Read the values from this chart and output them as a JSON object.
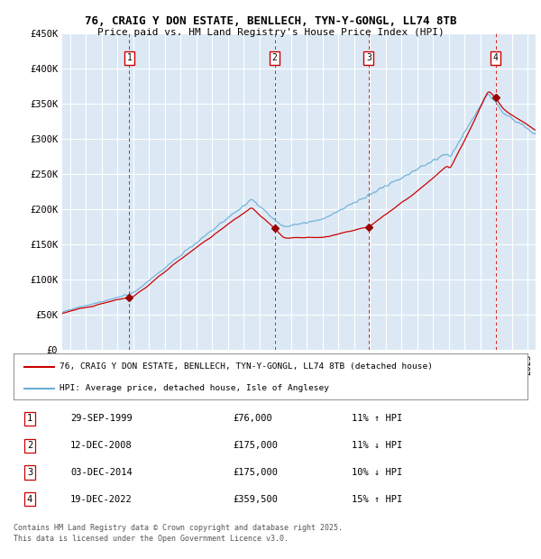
{
  "title": "76, CRAIG Y DON ESTATE, BENLLECH, TYN-Y-GONGL, LL74 8TB",
  "subtitle": "Price paid vs. HM Land Registry's House Price Index (HPI)",
  "ylim": [
    0,
    450000
  ],
  "xlim_start": 1995.5,
  "xlim_end": 2025.5,
  "bg_color": "#dce9f5",
  "grid_color": "#ffffff",
  "sale_points": [
    {
      "num": 1,
      "date_dec": 1999.75,
      "price": 76000
    },
    {
      "num": 2,
      "date_dec": 2008.96,
      "price": 175000
    },
    {
      "num": 3,
      "date_dec": 2014.92,
      "price": 175000
    },
    {
      "num": 4,
      "date_dec": 2022.96,
      "price": 359500
    }
  ],
  "legend_line1": "76, CRAIG Y DON ESTATE, BENLLECH, TYN-Y-GONGL, LL74 8TB (detached house)",
  "legend_line2": "HPI: Average price, detached house, Isle of Anglesey",
  "footer1": "Contains HM Land Registry data © Crown copyright and database right 2025.",
  "footer2": "This data is licensed under the Open Government Licence v3.0.",
  "table_rows": [
    {
      "num": 1,
      "date": "29-SEP-1999",
      "price": "£76,000",
      "pct": "11% ↑ HPI"
    },
    {
      "num": 2,
      "date": "12-DEC-2008",
      "price": "£175,000",
      "pct": "11% ↓ HPI"
    },
    {
      "num": 3,
      "date": "03-DEC-2014",
      "price": "£175,000",
      "pct": "10% ↓ HPI"
    },
    {
      "num": 4,
      "date": "19-DEC-2022",
      "price": "£359,500",
      "pct": "15% ↑ HPI"
    }
  ]
}
